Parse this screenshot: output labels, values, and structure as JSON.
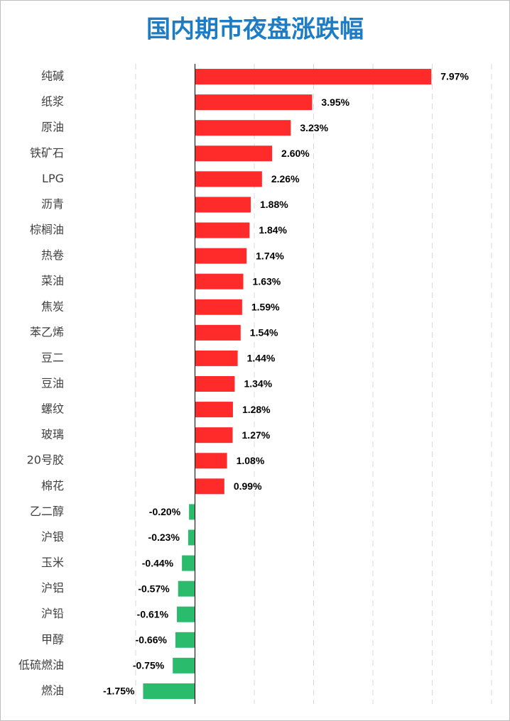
{
  "chart_data": {
    "type": "hbar",
    "title": "国内期市夜盘涨跌幅",
    "categories": [
      "纯碱",
      "纸浆",
      "原油",
      "铁矿石",
      "LPG",
      "沥青",
      "棕榈油",
      "热卷",
      "菜油",
      "焦炭",
      "苯乙烯",
      "豆二",
      "豆油",
      "螺纹",
      "玻璃",
      "20号胶",
      "棉花",
      "乙二醇",
      "沪银",
      "玉米",
      "沪铝",
      "沪铅",
      "甲醇",
      "低硫燃油",
      "燃油"
    ],
    "values": [
      7.97,
      3.95,
      3.23,
      2.6,
      2.26,
      1.88,
      1.84,
      1.74,
      1.63,
      1.59,
      1.54,
      1.44,
      1.34,
      1.28,
      1.27,
      1.08,
      0.99,
      -0.2,
      -0.23,
      -0.44,
      -0.57,
      -0.61,
      -0.66,
      -0.75,
      -1.75
    ],
    "value_labels": [
      "7.97%",
      "3.95%",
      "3.23%",
      "2.60%",
      "2.26%",
      "1.88%",
      "1.84%",
      "1.74%",
      "1.63%",
      "1.59%",
      "1.54%",
      "1.44%",
      "1.34%",
      "1.28%",
      "1.27%",
      "1.08%",
      "0.99%",
      "-0.20%",
      "-0.23%",
      "-0.44%",
      "-0.57%",
      "-0.61%",
      "-0.66%",
      "-0.75%",
      "-1.75%"
    ],
    "color_positive": "#ff2b2b",
    "color_negative": "#2bbb6c",
    "xlim": [
      -2,
      10
    ],
    "xticks": [
      -2,
      0,
      2,
      4,
      6,
      8,
      10
    ],
    "grid": true
  }
}
